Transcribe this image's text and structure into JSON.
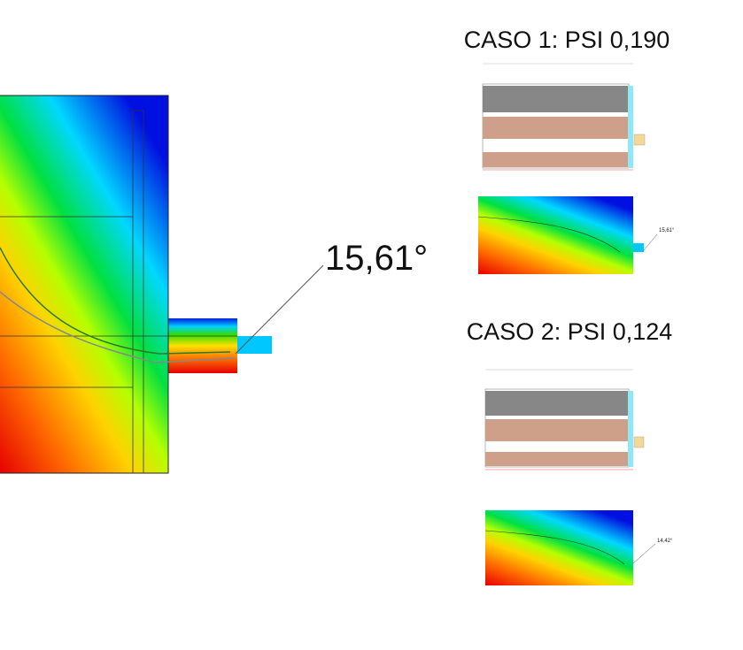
{
  "main": {
    "temperature": "15,61°"
  },
  "case1": {
    "title": "CASO 1: PSI 0,190",
    "temperature": "15,61°"
  },
  "case2": {
    "title": "CASO 2: PSI 0,124",
    "temperature": "14,42°"
  }
}
